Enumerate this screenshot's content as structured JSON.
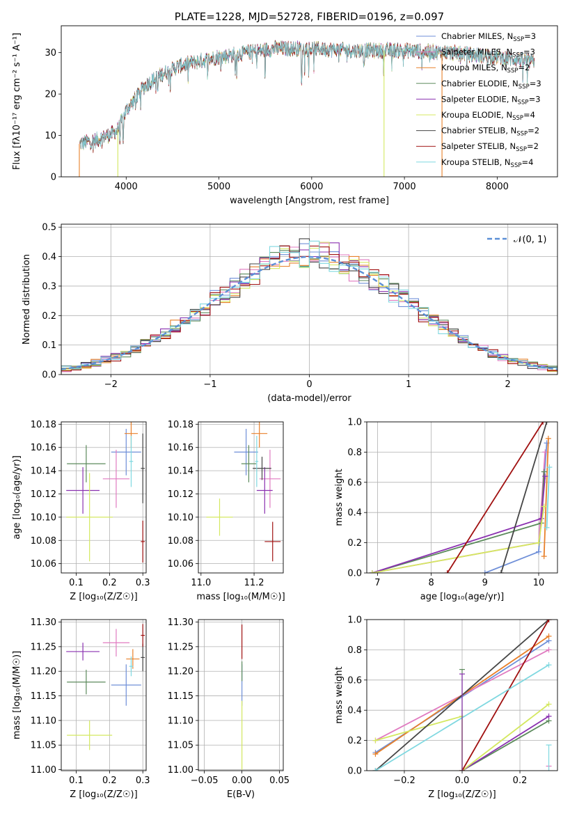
{
  "colors": {
    "Chabrier MILES": "#6f8fd8",
    "Salpeter MILES": "#e07ac0",
    "Kroupa MILES": "#e8802a",
    "Chabrier ELODIE": "#5b8a5b",
    "Salpeter ELODIE": "#8a30b0",
    "Kroupa ELODIE": "#d4e860",
    "Chabrier STELIB": "#454545",
    "Salpeter STELIB": "#a01010",
    "Kroupa STELIB": "#7fd8e0",
    "normal": "#5b8fd6",
    "grid": "#b0b0b0"
  },
  "chart_data": [
    {
      "id": "spectrum",
      "type": "line",
      "title": "PLATE=1228, MJD=52728, FIBERID=0196, z=0.097",
      "xlabel": "wavelength [Angstrom, rest frame]",
      "ylabel": "Flux [fλ10⁻¹⁷ erg cm⁻² s⁻¹ A⁻¹]",
      "xlim": [
        3300,
        8650
      ],
      "ylim": [
        0,
        36.5
      ],
      "xticks": [
        "4000",
        "5000",
        "6000",
        "7000",
        "8000"
      ],
      "yticks": [
        "0",
        "10",
        "20",
        "30"
      ],
      "grid": false,
      "legend_position": "top-right",
      "continuum_anchors": [
        [
          3500,
          8
        ],
        [
          3700,
          9
        ],
        [
          3900,
          11
        ],
        [
          4000,
          16
        ],
        [
          4200,
          22
        ],
        [
          4400,
          25
        ],
        [
          4600,
          27
        ],
        [
          4800,
          28
        ],
        [
          5000,
          29
        ],
        [
          5300,
          30
        ],
        [
          5600,
          31
        ],
        [
          6000,
          31
        ],
        [
          6500,
          30.5
        ],
        [
          7000,
          30.5
        ],
        [
          7500,
          30
        ],
        [
          8000,
          29
        ],
        [
          8500,
          27.5
        ]
      ],
      "series": [
        {
          "name": "Chabrier MILES",
          "legend": "Chabrier MILES, N",
          "sub": "SSP",
          "eq": "=3"
        },
        {
          "name": "Salpeter MILES",
          "legend": "Salpeter MILES, N",
          "sub": "SSP",
          "eq": "=3"
        },
        {
          "name": "Kroupa MILES",
          "legend": "Kroupa MILES, N",
          "sub": "SSP",
          "eq": "=2"
        },
        {
          "name": "Chabrier ELODIE",
          "legend": "Chabrier ELODIE, N",
          "sub": "SSP",
          "eq": "=3"
        },
        {
          "name": "Salpeter ELODIE",
          "legend": "Salpeter ELODIE, N",
          "sub": "SSP",
          "eq": "=3"
        },
        {
          "name": "Kroupa ELODIE",
          "legend": "Kroupa ELODIE, N",
          "sub": "SSP",
          "eq": "=4"
        },
        {
          "name": "Chabrier STELIB",
          "legend": "Chabrier STELIB, N",
          "sub": "SSP",
          "eq": "=2"
        },
        {
          "name": "Salpeter STELIB",
          "legend": "Salpeter STELIB, N",
          "sub": "SSP",
          "eq": "=2"
        },
        {
          "name": "Kroupa STELIB",
          "legend": "Kroupa STELIB, N",
          "sub": "SSP",
          "eq": "=4"
        }
      ],
      "drop_lines": [
        {
          "x": 3495,
          "series": "Kroupa MILES"
        },
        {
          "x": 3910,
          "series": "Kroupa ELODIE"
        },
        {
          "x": 6780,
          "series": "Kroupa ELODIE"
        },
        {
          "x": 7405,
          "series": "Kroupa MILES"
        }
      ]
    },
    {
      "id": "residuals",
      "type": "histogram",
      "xlabel": "(data-model)/error",
      "ylabel": "Normed distribution",
      "xlim": [
        -2.5,
        2.5
      ],
      "ylim": [
        0,
        0.51
      ],
      "xticks": [
        "−2",
        "−1",
        "0",
        "1",
        "2"
      ],
      "yticks": [
        "0.0",
        "0.1",
        "0.2",
        "0.3",
        "0.4",
        "0.5"
      ],
      "grid": true,
      "legend_position": "top-right",
      "normal_label": "𝒩(0, 1)",
      "bin_width": 0.1
    },
    {
      "id": "age_vs_Z",
      "type": "scatter",
      "xlabel": "Z [log₁₀(Z/Z☉)]",
      "ylabel": "age  [log₁₀(age/yr)]",
      "xlim": [
        0.055,
        0.31
      ],
      "ylim": [
        10.052,
        10.182
      ],
      "xticks": [
        "0.1",
        "0.2",
        "0.3"
      ],
      "yticks": [
        "10.06",
        "10.08",
        "10.10",
        "10.12",
        "10.14",
        "10.16",
        "10.18"
      ],
      "grid": true,
      "points": [
        {
          "series": "Chabrier MILES",
          "x": 0.25,
          "y": 10.156,
          "xerr": 0.045,
          "yerr": 0.02
        },
        {
          "series": "Salpeter MILES",
          "x": 0.22,
          "y": 10.133,
          "xerr": 0.04,
          "yerr": 0.025
        },
        {
          "series": "Kroupa MILES",
          "x": 0.265,
          "y": 10.172,
          "xerr": 0.02,
          "yerr": 0.012
        },
        {
          "series": "Chabrier ELODIE",
          "x": 0.13,
          "y": 10.146,
          "xerr": 0.058,
          "yerr": 0.016
        },
        {
          "series": "Salpeter ELODIE",
          "x": 0.12,
          "y": 10.123,
          "xerr": 0.05,
          "yerr": 0.02
        },
        {
          "series": "Kroupa ELODIE",
          "x": 0.14,
          "y": 10.1,
          "xerr": 0.07,
          "yerr": 0.038
        },
        {
          "series": "Chabrier STELIB",
          "x": 0.3,
          "y": 10.142,
          "xerr": 0.006,
          "yerr": 0.03
        },
        {
          "series": "Salpeter STELIB",
          "x": 0.3,
          "y": 10.079,
          "xerr": 0.006,
          "yerr": 0.018
        },
        {
          "series": "Kroupa STELIB",
          "x": 0.265,
          "y": 10.148,
          "xerr": 0.006,
          "yerr": 0.022
        }
      ]
    },
    {
      "id": "age_vs_mass",
      "type": "scatter",
      "xlabel": "mass [log₁₀(M/M☉)]",
      "ylabel": "",
      "xlim": [
        10.99,
        11.31
      ],
      "ylim": [
        10.052,
        10.182
      ],
      "xticks": [
        "11.0",
        "11.2"
      ],
      "yticks": [
        "10.06",
        "10.08",
        "10.10",
        "10.12",
        "10.14",
        "10.16",
        "10.18"
      ],
      "grid": true,
      "points": [
        {
          "series": "Chabrier MILES",
          "x": 11.17,
          "y": 10.156,
          "xerr": 0.045,
          "yerr": 0.02
        },
        {
          "series": "Salpeter MILES",
          "x": 11.26,
          "y": 10.133,
          "xerr": 0.04,
          "yerr": 0.025
        },
        {
          "series": "Kroupa MILES",
          "x": 11.22,
          "y": 10.172,
          "xerr": 0.03,
          "yerr": 0.012
        },
        {
          "series": "Chabrier ELODIE",
          "x": 11.18,
          "y": 10.146,
          "xerr": 0.028,
          "yerr": 0.016
        },
        {
          "series": "Salpeter ELODIE",
          "x": 11.24,
          "y": 10.123,
          "xerr": 0.03,
          "yerr": 0.02
        },
        {
          "series": "Kroupa ELODIE",
          "x": 11.07,
          "y": 10.1,
          "xerr": 0.05,
          "yerr": 0.016
        },
        {
          "series": "Chabrier STELIB",
          "x": 11.23,
          "y": 10.142,
          "xerr": 0.035,
          "yerr": 0.01
        },
        {
          "series": "Salpeter STELIB",
          "x": 11.27,
          "y": 10.079,
          "xerr": 0.03,
          "yerr": 0.017
        },
        {
          "series": "Kroupa STELIB",
          "x": 11.21,
          "y": 10.148,
          "xerr": 0.006,
          "yerr": 0.022
        }
      ]
    },
    {
      "id": "weight_vs_age",
      "type": "line",
      "xlabel": "age  [log₁₀(age/yr)]",
      "ylabel": "mass weight",
      "xlim": [
        6.8,
        10.35
      ],
      "ylim": [
        0,
        1
      ],
      "xticks": [
        "7",
        "8",
        "9",
        "10"
      ],
      "yticks": [
        "0.0",
        "0.2",
        "0.4",
        "0.6",
        "0.8",
        "1.0"
      ],
      "grid": true,
      "series": [
        {
          "name": "Chabrier MILES",
          "points": [
            [
              9.0,
              0.0
            ],
            [
              10.0,
              0.14
            ],
            [
              10.15,
              0.86
            ]
          ]
        },
        {
          "name": "Salpeter MILES",
          "points": [
            [
              6.9,
              0.0
            ],
            [
              10.0,
              0.2
            ],
            [
              10.12,
              0.8
            ]
          ]
        },
        {
          "name": "Kroupa MILES",
          "points": [
            [
              10.1,
              0.11
            ],
            [
              10.18,
              0.89
            ]
          ]
        },
        {
          "name": "Chabrier ELODIE",
          "points": [
            [
              6.9,
              0.0
            ],
            [
              10.05,
              0.33
            ],
            [
              10.1,
              0.67
            ]
          ]
        },
        {
          "name": "Salpeter ELODIE",
          "points": [
            [
              6.9,
              0.0
            ],
            [
              10.05,
              0.36
            ],
            [
              10.12,
              0.64
            ]
          ]
        },
        {
          "name": "Kroupa ELODIE",
          "points": [
            [
              6.9,
              0.0
            ],
            [
              10.0,
              0.2
            ],
            [
              10.1,
              0.44
            ]
          ]
        },
        {
          "name": "Chabrier STELIB",
          "points": [
            [
              9.3,
              0.0
            ],
            [
              10.15,
              1.0
            ]
          ]
        },
        {
          "name": "Salpeter STELIB",
          "points": [
            [
              8.3,
              0.0
            ],
            [
              10.08,
              1.0
            ]
          ]
        },
        {
          "name": "Kroupa STELIB",
          "points": [
            [
              10.15,
              0.3
            ],
            [
              10.2,
              0.7
            ]
          ]
        }
      ]
    },
    {
      "id": "mass_vs_Z",
      "type": "scatter",
      "xlabel": "Z [log₁₀(Z/Z☉)]",
      "ylabel": "mass [log₁₀(M/M☉)]",
      "xlim": [
        0.055,
        0.31
      ],
      "ylim": [
        10.998,
        11.305
      ],
      "xticks": [
        "0.1",
        "0.2",
        "0.3"
      ],
      "yticks": [
        "11.00",
        "11.05",
        "11.10",
        "11.15",
        "11.20",
        "11.25",
        "11.30"
      ],
      "grid": true,
      "points": [
        {
          "series": "Chabrier MILES",
          "x": 0.25,
          "y": 11.172,
          "xerr": 0.045,
          "yerr": 0.042
        },
        {
          "series": "Salpeter MILES",
          "x": 0.22,
          "y": 11.258,
          "xerr": 0.04,
          "yerr": 0.028
        },
        {
          "series": "Kroupa MILES",
          "x": 0.27,
          "y": 11.225,
          "xerr": 0.02,
          "yerr": 0.02
        },
        {
          "series": "Chabrier ELODIE",
          "x": 0.13,
          "y": 11.178,
          "xerr": 0.058,
          "yerr": 0.025
        },
        {
          "series": "Salpeter ELODIE",
          "x": 0.12,
          "y": 11.24,
          "xerr": 0.05,
          "yerr": 0.018
        },
        {
          "series": "Kroupa ELODIE",
          "x": 0.14,
          "y": 11.07,
          "xerr": 0.068,
          "yerr": 0.03
        },
        {
          "series": "Chabrier STELIB",
          "x": 0.3,
          "y": 11.228,
          "xerr": 0.006,
          "yerr": 0.028
        },
        {
          "series": "Salpeter STELIB",
          "x": 0.3,
          "y": 11.273,
          "xerr": 0.006,
          "yerr": 0.023
        },
        {
          "series": "Kroupa STELIB",
          "x": 0.265,
          "y": 11.21,
          "xerr": 0.006,
          "yerr": 0.02
        }
      ]
    },
    {
      "id": "mass_vs_ebv",
      "type": "scatter",
      "xlabel": "E(B-V)",
      "ylabel": "",
      "xlim": [
        -0.058,
        0.055
      ],
      "ylim": [
        10.998,
        11.305
      ],
      "xticks": [
        "−0.05",
        "0.00",
        "0.05"
      ],
      "yticks": [
        "11.00",
        "11.05",
        "11.10",
        "11.15",
        "11.20",
        "11.25",
        "11.30"
      ],
      "grid": true,
      "points": [
        {
          "series": "Chabrier MILES",
          "x": 0.0,
          "y": 11.172,
          "xerr": 0,
          "yerr": 0.042
        },
        {
          "series": "Kroupa ELODIE",
          "x": 0.0,
          "y": 11.07,
          "xerr": 0,
          "yerr": 0.07
        },
        {
          "series": "Salpeter STELIB",
          "x": 0.0,
          "y": 11.26,
          "xerr": 0,
          "yerr": 0.035
        },
        {
          "series": "Chabrier ELODIE",
          "x": 0.0,
          "y": 11.2,
          "xerr": 0,
          "yerr": 0.02
        }
      ]
    },
    {
      "id": "weight_vs_Z",
      "type": "line",
      "xlabel": "Z [log₁₀(Z/Z☉)]",
      "ylabel": "mass weight",
      "xlim": [
        -0.33,
        0.33
      ],
      "ylim": [
        0,
        1
      ],
      "xticks": [
        "−0.2",
        "0.0",
        "0.2"
      ],
      "yticks": [
        "0.0",
        "0.2",
        "0.4",
        "0.6",
        "0.8",
        "1.0"
      ],
      "grid": true,
      "series": [
        {
          "name": "Chabrier MILES",
          "points": [
            [
              -0.3,
              0.12
            ],
            [
              0.3,
              0.86
            ]
          ]
        },
        {
          "name": "Salpeter MILES",
          "points": [
            [
              -0.3,
              0.2
            ],
            [
              0.3,
              0.8
            ]
          ]
        },
        {
          "name": "Kroupa MILES",
          "points": [
            [
              -0.3,
              0.11
            ],
            [
              0.3,
              0.89
            ]
          ]
        },
        {
          "name": "Chabrier ELODIE",
          "points": [
            [
              0.0,
              0.0
            ],
            [
              0.3,
              0.33
            ]
          ]
        },
        {
          "name": "Salpeter ELODIE",
          "points": [
            [
              0.0,
              0.0
            ],
            [
              0.3,
              0.36
            ]
          ]
        },
        {
          "name": "Kroupa ELODIE",
          "points": [
            [
              -0.3,
              0.2
            ],
            [
              0.0,
              0.36
            ],
            [
              0.0,
              0.0
            ],
            [
              0.3,
              0.44
            ]
          ]
        },
        {
          "name": "Chabrier STELIB",
          "points": [
            [
              -0.3,
              0.0
            ],
            [
              0.3,
              1.0
            ]
          ]
        },
        {
          "name": "Salpeter STELIB",
          "points": [
            [
              0.0,
              0.0
            ],
            [
              0.3,
              1.0
            ]
          ]
        },
        {
          "name": "Kroupa STELIB",
          "points": [
            [
              -0.3,
              0.0
            ],
            [
              0.3,
              0.7
            ]
          ]
        }
      ],
      "markers": [
        {
          "series": "Chabrier ELODIE",
          "x": 0.0,
          "y": 0.67
        },
        {
          "series": "Salpeter ELODIE",
          "x": 0.0,
          "y": 0.64
        },
        {
          "series": "Salpeter MILES",
          "x": 0.3,
          "y": 0.03
        },
        {
          "series": "Kroupa STELIB",
          "x": 0.3,
          "y": 0.17
        }
      ]
    }
  ]
}
